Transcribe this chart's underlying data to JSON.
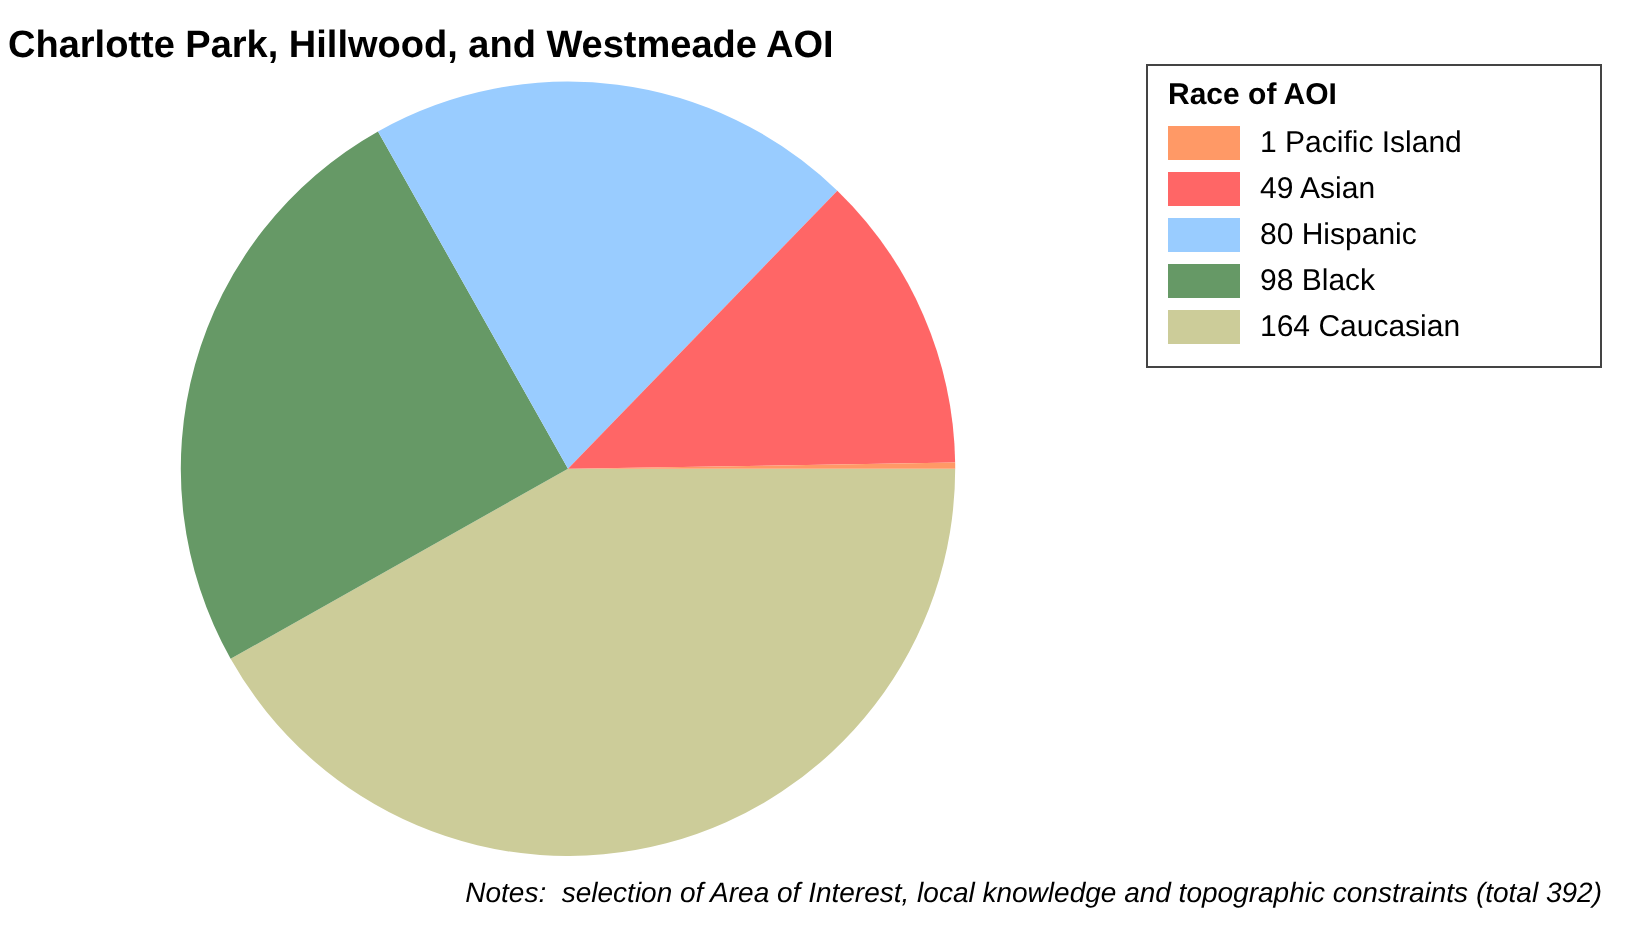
{
  "chart_data": {
    "type": "pie",
    "title": "Charlotte Park, Hillwood, and Westmeade AOI",
    "legend_title": "Race of AOI",
    "categories": [
      "1 Pacific Island",
      "49 Asian",
      "80 Hispanic",
      "98 Black",
      "164 Caucasian"
    ],
    "values": [
      1,
      49,
      80,
      98,
      164
    ],
    "colors": [
      "#ff9966",
      "#ff6666",
      "#99ccff",
      "#669966",
      "#cccc99"
    ],
    "legend": "top right",
    "annotations": [
      "Notes:  selection of Area of Interest, local knowledge and topographic constraints (total 392)"
    ]
  }
}
